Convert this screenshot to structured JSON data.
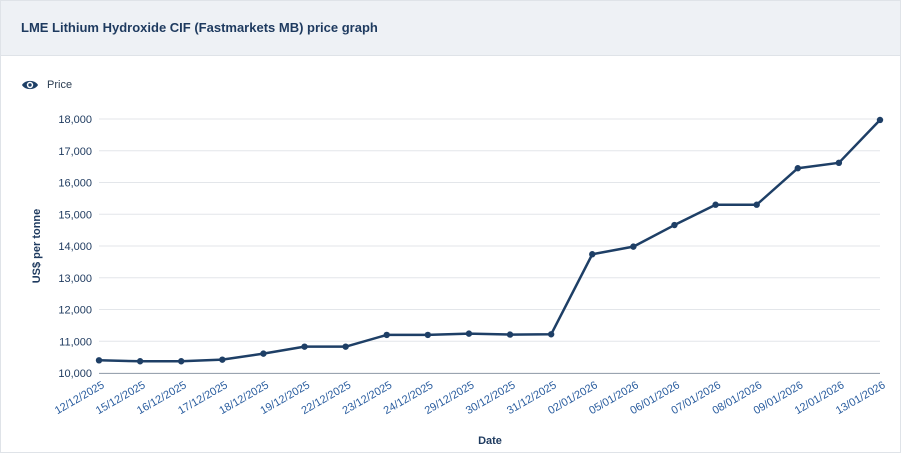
{
  "header": {
    "title": "LME Lithium Hydroxide CIF (Fastmarkets MB) price graph"
  },
  "legend": {
    "icon": "eye-icon",
    "label": "Price"
  },
  "colors": {
    "series": "#1e3f66",
    "grid": "#e3e6ea",
    "header_bg": "#eef1f5",
    "tick_x": "#2a5d9f"
  },
  "chart_data": {
    "type": "line",
    "xlabel": "Date",
    "ylabel": "US$ per tonne",
    "ylim": [
      10000,
      18000
    ],
    "yticks": [
      10000,
      11000,
      12000,
      13000,
      14000,
      15000,
      16000,
      17000,
      18000
    ],
    "ytick_labels": [
      "10,000",
      "11,000",
      "12,000",
      "13,000",
      "14,000",
      "15,000",
      "16,000",
      "17,000",
      "18,000"
    ],
    "grid": true,
    "legend_position": "top-left",
    "categories": [
      "12/12/2025",
      "15/12/2025",
      "16/12/2025",
      "17/12/2025",
      "18/12/2025",
      "19/12/2025",
      "22/12/2025",
      "23/12/2025",
      "24/12/2025",
      "29/12/2025",
      "30/12/2025",
      "31/12/2025",
      "02/01/2026",
      "05/01/2026",
      "06/01/2026",
      "07/01/2026",
      "08/01/2026",
      "09/01/2026",
      "12/01/2026",
      "13/01/2026"
    ],
    "series": [
      {
        "name": "Price",
        "values": [
          10400,
          10370,
          10370,
          10420,
          10610,
          10830,
          10830,
          11200,
          11200,
          11240,
          11210,
          11220,
          13740,
          13980,
          14660,
          15300,
          15300,
          16450,
          16620,
          17970
        ]
      }
    ]
  }
}
